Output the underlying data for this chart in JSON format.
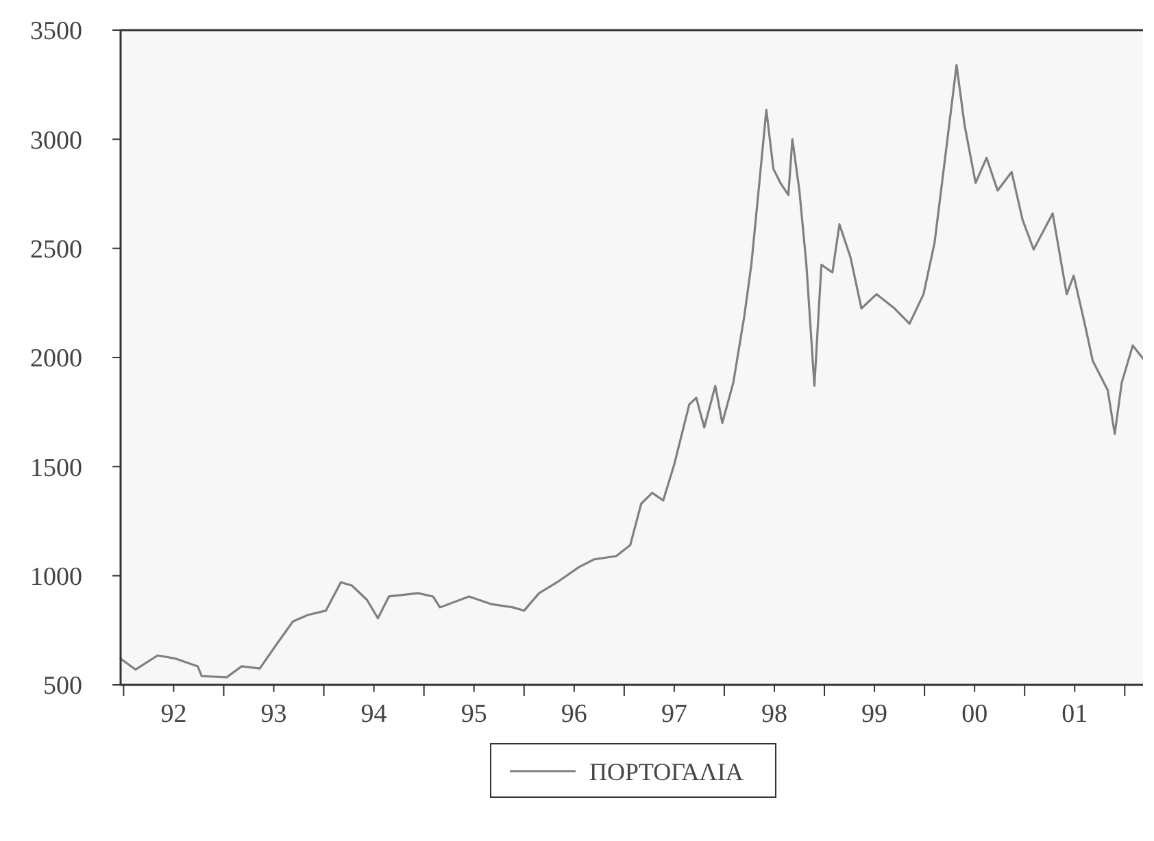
{
  "chart_data": {
    "type": "line",
    "x": [
      1991.47,
      1991.62,
      1991.84,
      1992.02,
      1992.24,
      1992.28,
      1992.53,
      1992.68,
      1992.86,
      1993.05,
      1993.19,
      1993.34,
      1993.52,
      1993.67,
      1993.78,
      1993.93,
      1994.04,
      1994.15,
      1994.44,
      1994.59,
      1994.66,
      1994.95,
      1995.17,
      1995.39,
      1995.5,
      1995.65,
      1995.83,
      1996.05,
      1996.2,
      1996.42,
      1996.56,
      1996.67,
      1996.78,
      1996.89,
      1997.0,
      1997.15,
      1997.22,
      1997.3,
      1997.41,
      1997.48,
      1997.59,
      1997.7,
      1997.77,
      1997.85,
      1997.92,
      1997.99,
      1998.06,
      1998.14,
      1998.18,
      1998.25,
      1998.32,
      1998.4,
      1998.47,
      1998.58,
      1998.65,
      1998.76,
      1998.87,
      1999.02,
      1999.2,
      1999.35,
      1999.49,
      1999.6,
      1999.71,
      1999.82,
      1999.9,
      2000.01,
      2000.12,
      2000.23,
      2000.37,
      2000.48,
      2000.59,
      2000.78,
      2000.92,
      2000.99,
      2001.1,
      2001.18,
      2001.33,
      2001.4,
      2001.47,
      2001.58,
      2001.7
    ],
    "series": [
      {
        "name": "ΠΟΡΤΟΓΑΛΙΑ",
        "color": "#808080",
        "values": [
          620,
          570,
          635,
          620,
          585,
          540,
          535,
          585,
          575,
          700,
          790,
          820,
          840,
          970,
          955,
          890,
          805,
          905,
          920,
          905,
          855,
          905,
          870,
          855,
          840,
          920,
          970,
          1040,
          1075,
          1090,
          1140,
          1330,
          1380,
          1345,
          1510,
          1785,
          1815,
          1680,
          1870,
          1700,
          1885,
          2190,
          2425,
          2800,
          3135,
          2865,
          2800,
          2745,
          3000,
          2765,
          2425,
          1870,
          2425,
          2390,
          2610,
          2460,
          2225,
          2290,
          2225,
          2155,
          2290,
          2525,
          2930,
          3340,
          3065,
          2800,
          2915,
          2765,
          2850,
          2630,
          2495,
          2660,
          2290,
          2375,
          2155,
          1985,
          1850,
          1650,
          1885,
          2055,
          1985
        ]
      }
    ],
    "xlim": [
      1991.47,
      2001.71
    ],
    "xticks": [
      {
        "value": 1992,
        "label": "92"
      },
      {
        "value": 1993,
        "label": "93"
      },
      {
        "value": 1994,
        "label": "94"
      },
      {
        "value": 1995,
        "label": "95"
      },
      {
        "value": 1996,
        "label": "96"
      },
      {
        "value": 1997,
        "label": "97"
      },
      {
        "value": 1998,
        "label": "98"
      },
      {
        "value": 1999,
        "label": "99"
      },
      {
        "value": 2000,
        "label": "00"
      },
      {
        "value": 2001,
        "label": "01"
      },
      {
        "value": 1991.5,
        "label": null
      },
      {
        "value": 1992.5,
        "label": null
      },
      {
        "value": 1993.5,
        "label": null
      },
      {
        "value": 1994.5,
        "label": null
      },
      {
        "value": 1995.5,
        "label": null
      },
      {
        "value": 1996.5,
        "label": null
      },
      {
        "value": 1997.5,
        "label": null
      },
      {
        "value": 1998.5,
        "label": null
      },
      {
        "value": 1999.5,
        "label": null
      },
      {
        "value": 2000.5,
        "label": null
      },
      {
        "value": 2001.5,
        "label": null
      }
    ],
    "ylim": [
      500,
      3500
    ],
    "yticks": [
      500,
      1000,
      1500,
      2000,
      2500,
      3000,
      3500
    ],
    "legend": "bottom",
    "grid": false,
    "marker": "none",
    "line_style": "solid"
  }
}
